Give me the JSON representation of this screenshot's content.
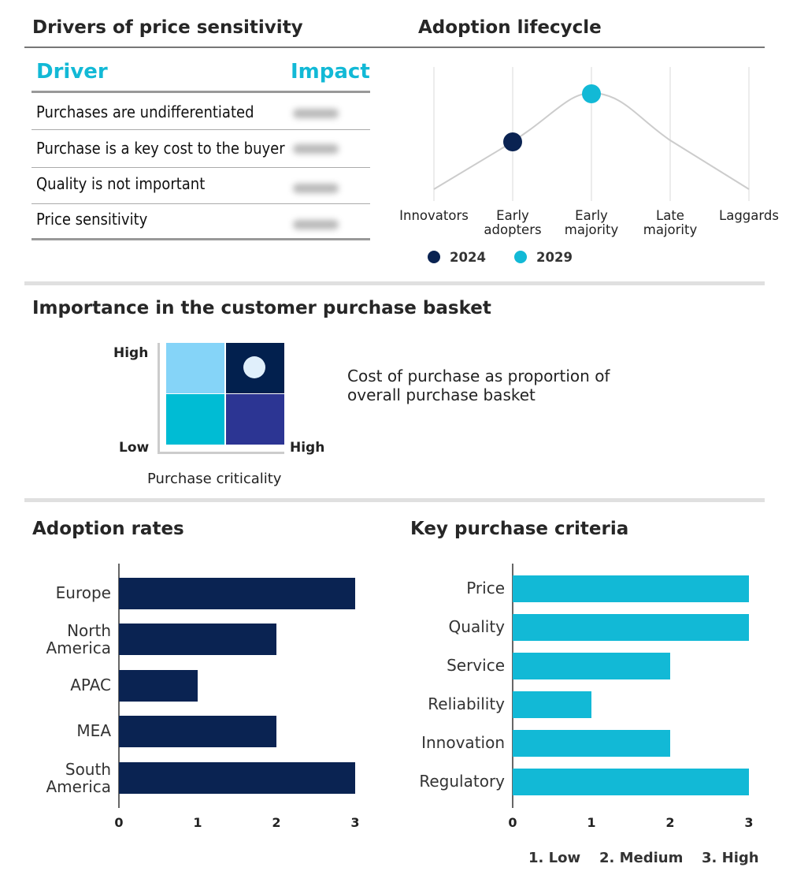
{
  "drivers": {
    "title": "Drivers of price sensitivity",
    "col_driver": "Driver",
    "col_impact": "Impact",
    "rows": [
      {
        "driver": "Purchases are undifferentiated"
      },
      {
        "driver": "Purchase is a key cost to the buyer"
      },
      {
        "driver": "Quality is not important"
      },
      {
        "driver": "Price sensitivity"
      }
    ]
  },
  "lifecycle": {
    "title": "Adoption lifecycle",
    "stages": [
      "Innovators",
      "Early\nadopters",
      "Early\nmajority",
      "Late\nmajority",
      "Laggards"
    ],
    "markers": [
      {
        "label": "2024",
        "stage_index": 1,
        "color": "#0a2352"
      },
      {
        "label": "2029",
        "stage_index": 2,
        "color": "#12b9d6"
      }
    ]
  },
  "basket": {
    "title": "Importance in the customer purchase basket",
    "y_high": "High",
    "low": "Low",
    "x_high": "High",
    "x_label": "Purchase criticality",
    "description": "Cost of purchase as proportion of overall purchase basket",
    "quadrant_colors": {
      "top_left": "#85d4f8",
      "top_right": "#02204e",
      "bottom_left": "#00bcd4",
      "bottom_right": "#2c3593"
    },
    "selected": "top_right"
  },
  "chart_data": [
    {
      "type": "bar",
      "title": "Adoption rates",
      "orientation": "horizontal",
      "categories": [
        "Europe",
        "North\nAmerica",
        "APAC",
        "MEA",
        "South\nAmerica"
      ],
      "values": [
        3,
        2,
        1,
        2,
        3
      ],
      "xlim": [
        0,
        3
      ],
      "ticks": [
        "0",
        "1",
        "2",
        "3"
      ],
      "color": "#0a2352"
    },
    {
      "type": "bar",
      "title": "Key purchase criteria",
      "orientation": "horizontal",
      "categories": [
        "Price",
        "Quality",
        "Service",
        "Reliability",
        "Innovation",
        "Regulatory"
      ],
      "values": [
        3,
        3,
        2,
        1,
        2,
        3
      ],
      "xlim": [
        0,
        3
      ],
      "ticks": [
        "0",
        "1",
        "2",
        "3"
      ],
      "color": "#12b9d6"
    }
  ],
  "scale_legend": [
    "1. Low",
    "2. Medium",
    "3. High"
  ]
}
